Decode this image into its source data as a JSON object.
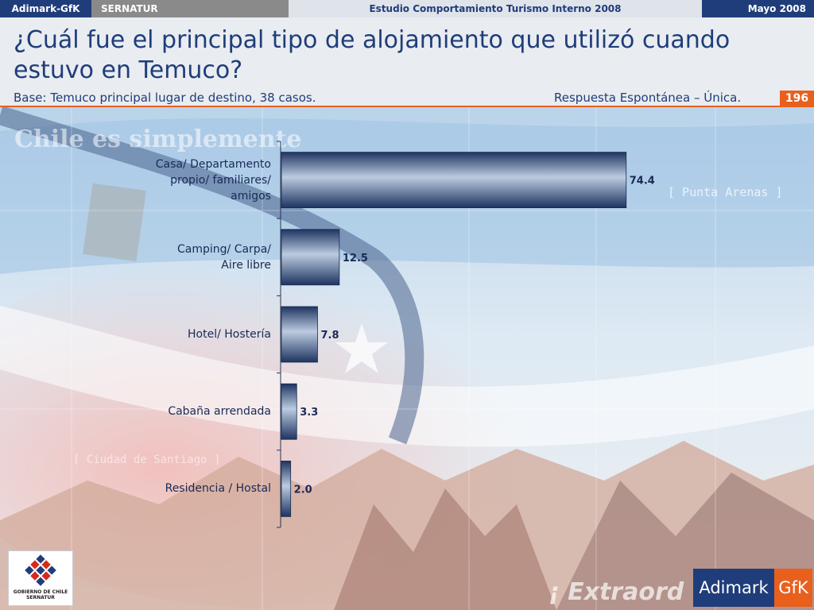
{
  "header": {
    "brand": "Adimark-GfK",
    "client": "SERNATUR",
    "study": "Estudio Comportamiento Turismo Interno 2008",
    "date": "Mayo 2008"
  },
  "slide": {
    "title": "¿Cuál fue el principal tipo de alojamiento que utilizó cuando estuvo en Temuco?",
    "base": "Base: Temuco principal lugar de destino, 38 casos.",
    "response_type": "Respuesta Espontánea – Única.",
    "page_number": "196"
  },
  "background": {
    "watermark_1": "Chile es simplemente",
    "watermark_2": "[ Punta Arenas ]",
    "watermark_3": "[ Ciudad de Santiago ]",
    "watermark_4": "¡ Extraord"
  },
  "chart_data": {
    "type": "bar",
    "orientation": "horizontal",
    "categories": [
      "Casa/ Departamento\npropio/ familiares/\namigos",
      "Camping/ Carpa/\nAire libre",
      "Hotel/ Hostería",
      "Cabaña arrendada",
      "Residencia / Hostal"
    ],
    "values": [
      74.4,
      12.5,
      7.8,
      3.3,
      2.0
    ],
    "value_labels": [
      "74.4",
      "12.5",
      "7.8",
      "3.3",
      "2.0"
    ],
    "xlim": [
      0,
      100
    ],
    "grid": false,
    "legend": "none",
    "bar_color": "#3b5283"
  },
  "footer": {
    "gov_logo_text": "GOBIERNO DE CHILE\nSERNATUR",
    "adimark_logo": "Adimark",
    "gfk_logo": "GfK"
  }
}
